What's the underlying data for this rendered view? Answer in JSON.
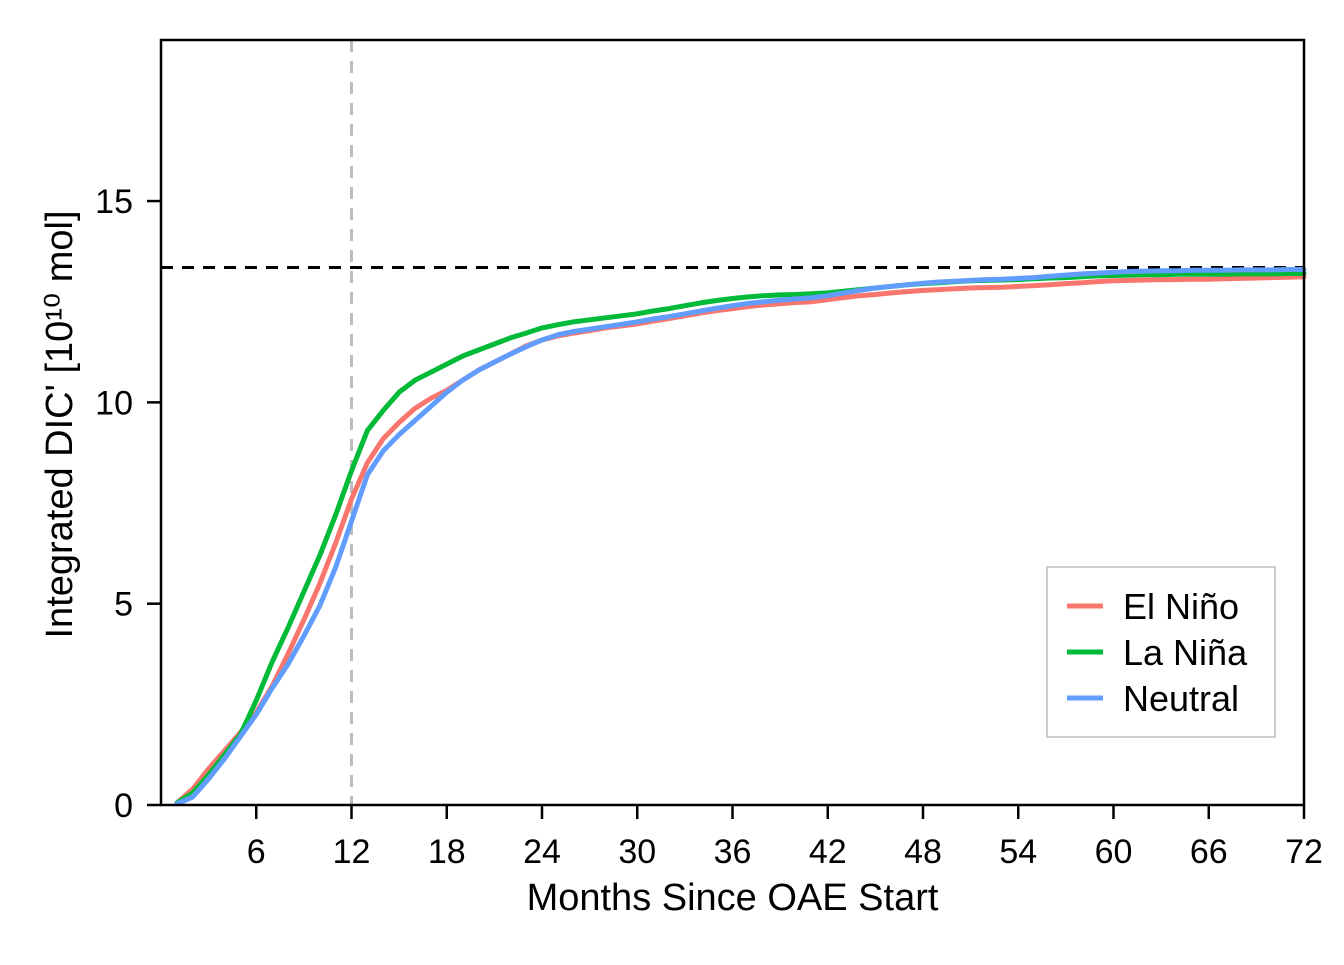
{
  "chart_data": {
    "type": "line",
    "xlabel": "Months Since OAE Start",
    "ylabel": "Integrated DIC' [10¹⁰ mol]",
    "xlim": [
      0,
      72
    ],
    "ylim": [
      0,
      19
    ],
    "x_ticks": [
      6,
      12,
      18,
      24,
      30,
      36,
      42,
      48,
      54,
      60,
      66,
      72
    ],
    "y_ticks": [
      0,
      5,
      10,
      15
    ],
    "grid": false,
    "legend_position": "bottom-right",
    "reference_lines": [
      {
        "orientation": "vertical",
        "value": 12,
        "style": "dashed",
        "color": "#bdbdbd"
      },
      {
        "orientation": "horizontal",
        "value": 13.35,
        "style": "dashed",
        "color": "#000000"
      }
    ],
    "x": [
      1,
      2,
      3,
      4,
      5,
      6,
      7,
      8,
      9,
      10,
      11,
      12,
      13,
      14,
      15,
      16,
      17,
      18,
      19,
      20,
      21,
      22,
      23,
      24,
      25,
      26,
      27,
      28,
      29,
      30,
      31,
      32,
      33,
      34,
      35,
      36,
      37,
      38,
      39,
      40,
      41,
      42,
      43,
      44,
      45,
      46,
      47,
      48,
      49,
      50,
      51,
      52,
      53,
      54,
      55,
      56,
      57,
      58,
      59,
      60,
      61,
      62,
      63,
      64,
      65,
      66,
      67,
      68,
      69,
      70,
      71,
      72
    ],
    "series": [
      {
        "name": "El Niño",
        "color": "#f8766d",
        "values": [
          0.05,
          0.4,
          0.9,
          1.35,
          1.8,
          2.3,
          2.95,
          3.75,
          4.6,
          5.5,
          6.5,
          7.6,
          8.5,
          9.1,
          9.5,
          9.85,
          10.1,
          10.3,
          10.55,
          10.8,
          11.0,
          11.2,
          11.4,
          11.55,
          11.65,
          11.72,
          11.78,
          11.85,
          11.9,
          11.95,
          12.02,
          12.08,
          12.15,
          12.22,
          12.28,
          12.33,
          12.38,
          12.42,
          12.45,
          12.48,
          12.5,
          12.55,
          12.6,
          12.65,
          12.68,
          12.72,
          12.75,
          12.78,
          12.8,
          12.82,
          12.84,
          12.85,
          12.86,
          12.88,
          12.9,
          12.92,
          12.95,
          12.97,
          13.0,
          13.02,
          13.03,
          13.04,
          13.05,
          13.05,
          13.06,
          13.06,
          13.07,
          13.08,
          13.09,
          13.1,
          13.11,
          13.12
        ]
      },
      {
        "name": "La Niña",
        "color": "#00ba38",
        "values": [
          0.05,
          0.3,
          0.75,
          1.25,
          1.75,
          2.6,
          3.55,
          4.4,
          5.3,
          6.2,
          7.2,
          8.3,
          9.3,
          9.8,
          10.25,
          10.55,
          10.75,
          10.95,
          11.15,
          11.3,
          11.45,
          11.6,
          11.72,
          11.85,
          11.93,
          12.0,
          12.05,
          12.1,
          12.15,
          12.2,
          12.27,
          12.33,
          12.4,
          12.47,
          12.53,
          12.58,
          12.62,
          12.65,
          12.67,
          12.68,
          12.7,
          12.72,
          12.76,
          12.8,
          12.84,
          12.88,
          12.92,
          12.95,
          12.97,
          13.0,
          13.02,
          13.03,
          13.04,
          13.05,
          13.07,
          13.09,
          13.1,
          13.12,
          13.14,
          13.15,
          13.16,
          13.17,
          13.17,
          13.18,
          13.18,
          13.18,
          13.18,
          13.19,
          13.19,
          13.19,
          13.2,
          13.2
        ]
      },
      {
        "name": "Neutral",
        "color": "#619cff",
        "values": [
          0.03,
          0.2,
          0.65,
          1.15,
          1.7,
          2.25,
          2.9,
          3.5,
          4.2,
          4.95,
          5.9,
          7.05,
          8.2,
          8.8,
          9.2,
          9.55,
          9.9,
          10.25,
          10.55,
          10.8,
          11.0,
          11.2,
          11.38,
          11.55,
          11.68,
          11.76,
          11.82,
          11.88,
          11.94,
          12.0,
          12.07,
          12.13,
          12.2,
          12.27,
          12.34,
          12.4,
          12.46,
          12.5,
          12.54,
          12.57,
          12.6,
          12.65,
          12.72,
          12.78,
          12.84,
          12.88,
          12.92,
          12.96,
          12.99,
          13.01,
          13.03,
          13.05,
          13.06,
          13.08,
          13.1,
          13.13,
          13.16,
          13.19,
          13.21,
          13.23,
          13.25,
          13.26,
          13.27,
          13.27,
          13.28,
          13.28,
          13.28,
          13.29,
          13.29,
          13.29,
          13.3,
          13.3
        ]
      }
    ]
  }
}
